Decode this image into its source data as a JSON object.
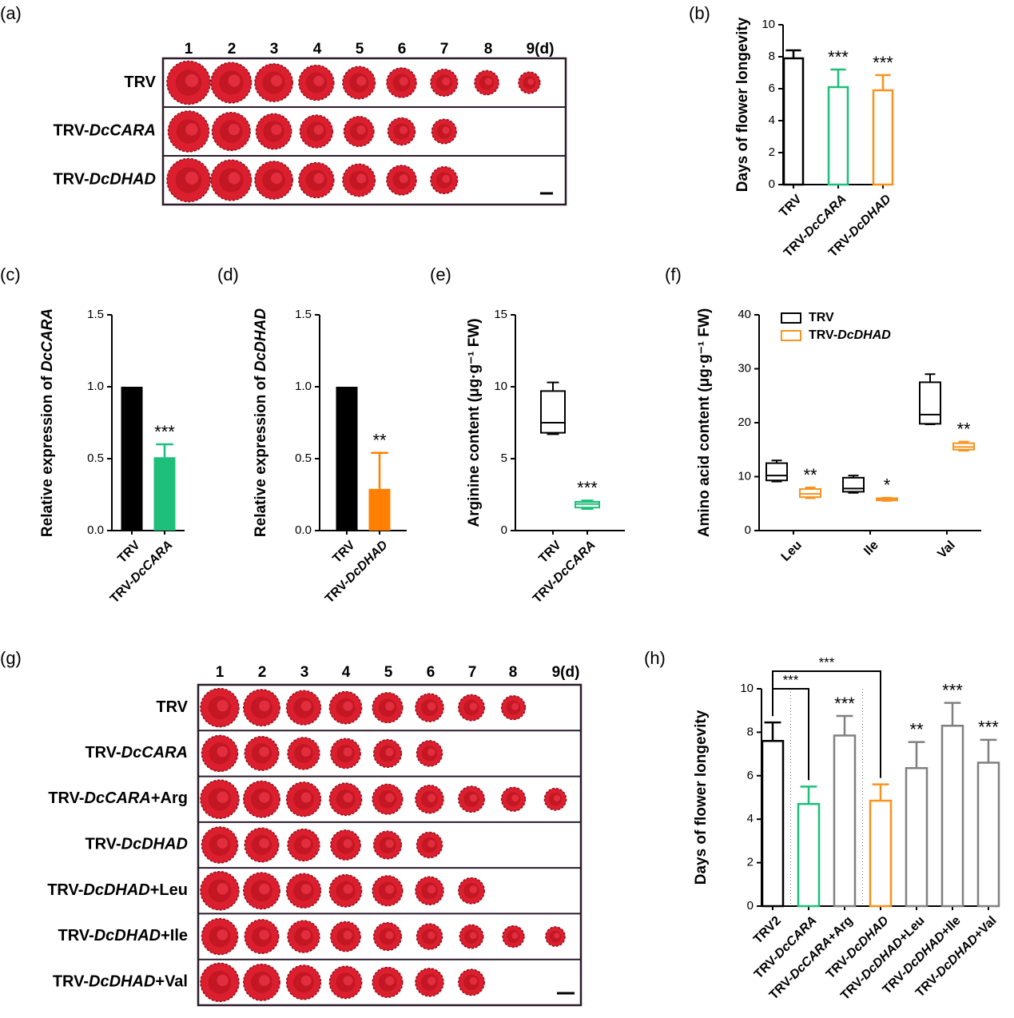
{
  "chart_data": [
    {
      "type": "bar",
      "panel_label": "(b)",
      "ylabel": "Days of flower longevity",
      "categories": [
        "TRV",
        "TRV-DcCARA",
        "TRV-DcDHAD"
      ],
      "values": [
        7.9,
        6.1,
        5.9
      ],
      "errors": [
        0.5,
        1.1,
        0.95
      ],
      "colors": [
        "#000000",
        "#1dbf7a",
        "#f7931e"
      ],
      "filled": false,
      "significance": [
        null,
        "***",
        "***"
      ],
      "ylim": [
        0,
        10
      ],
      "yticks": [
        0,
        2,
        4,
        6,
        8,
        10
      ]
    },
    {
      "type": "bar",
      "panel_label": "(c)",
      "ylabel": "Relative expression of DcCARA",
      "categories": [
        "TRV",
        "TRV-DcCARA"
      ],
      "values": [
        1.0,
        0.51
      ],
      "errors": [
        null,
        0.09
      ],
      "colors": [
        "#000000",
        "#1dbf7a"
      ],
      "filled": true,
      "significance": [
        null,
        "***"
      ],
      "ylim": [
        0,
        1.5
      ],
      "yticks": [
        {
          "value": 0,
          "label": "0.0"
        },
        0.5,
        {
          "value": 1,
          "label": "1.0"
        },
        1.5
      ]
    },
    {
      "type": "bar",
      "panel_label": "(d)",
      "ylabel": "Relative expression of DcDHAD",
      "categories": [
        "TRV",
        "TRV-DcDHAD"
      ],
      "values": [
        1.0,
        0.29
      ],
      "errors": [
        null,
        0.25
      ],
      "colors": [
        "#000000",
        "#ff8000"
      ],
      "filled": true,
      "significance": [
        null,
        "**"
      ],
      "ylim": [
        0,
        1.5
      ],
      "yticks": [
        {
          "value": 0,
          "label": "0.0"
        },
        0.5,
        {
          "value": 1,
          "label": "1.0"
        },
        1.5
      ]
    },
    {
      "type": "box",
      "panel_label": "(e)",
      "ylabel": "Arginine content (μg·g⁻¹ FW)",
      "categories": [
        "TRV",
        "TRV-DcCARA"
      ],
      "series": [
        {
          "colors": [
            "#000000",
            "#1dbf7a"
          ],
          "min": [
            6.7,
            1.5
          ],
          "q1": [
            6.8,
            1.6
          ],
          "median": [
            7.5,
            1.85
          ],
          "q3": [
            9.7,
            2.0
          ],
          "max": [
            10.3,
            2.1
          ]
        }
      ],
      "significance": [
        null,
        "***"
      ],
      "ylim": [
        0,
        15
      ],
      "yticks": [
        0,
        5,
        10,
        15
      ]
    },
    {
      "type": "box",
      "panel_label": "(f)",
      "ylabel": "Amino acid content (μg·g⁻¹ FW)",
      "categories": [
        "Leu",
        "Ile",
        "Val"
      ],
      "series": [
        {
          "name": "TRV",
          "color": "#000000",
          "min": [
            9.1,
            7.0,
            19.7
          ],
          "q1": [
            9.3,
            7.2,
            19.8
          ],
          "median": [
            10.2,
            7.8,
            21.5
          ],
          "q3": [
            12.5,
            9.8,
            27.5
          ],
          "max": [
            13.0,
            10.2,
            29.0
          ]
        },
        {
          "name": "TRV-DcDHAD",
          "color": "#f7931e",
          "min": [
            6.0,
            5.5,
            14.8
          ],
          "q1": [
            6.2,
            5.6,
            15.0
          ],
          "median": [
            6.8,
            5.8,
            15.5
          ],
          "q3": [
            7.7,
            6.0,
            16.2
          ],
          "max": [
            8.0,
            6.1,
            16.5
          ]
        }
      ],
      "significance": [
        "**",
        "*",
        "**"
      ],
      "legend": "top-left",
      "ylim": [
        0,
        40
      ],
      "yticks": [
        0,
        10,
        20,
        30,
        40
      ]
    },
    {
      "type": "bar",
      "panel_label": "(h)",
      "ylabel": "Days of flower longevity",
      "categories": [
        "TRV2",
        "TRV-DcCARA",
        "TRV-DcCARA+Arg",
        "TRV-DcDHAD",
        "TRV-DcDHAD+Leu",
        "TRV-DcDHAD+Ile",
        "TRV-DcDHAD+Val"
      ],
      "values": [
        7.6,
        4.7,
        7.85,
        4.85,
        6.35,
        8.3,
        6.6
      ],
      "errors": [
        0.85,
        0.8,
        0.9,
        0.75,
        1.2,
        1.05,
        1.05
      ],
      "colors": [
        "#000000",
        "#1dbf7a",
        "#808080",
        "#f7931e",
        "#808080",
        "#808080",
        "#808080"
      ],
      "filled": false,
      "significance": [
        null,
        null,
        "***",
        null,
        "**",
        "***",
        "***"
      ],
      "significance_colors": [
        null,
        null,
        "#1dbf7a",
        null,
        "#f7931e",
        "#f7931e",
        "#f7931e"
      ],
      "brackets": [
        {
          "from": "TRV2",
          "to": "TRV-DcCARA",
          "text": "***"
        },
        {
          "from": "TRV2",
          "to": "TRV-DcDHAD",
          "text": "***"
        }
      ],
      "ylim": [
        0,
        10
      ],
      "yticks": [
        0,
        2,
        4,
        6,
        8,
        10
      ]
    }
  ],
  "photo_panels": [
    {
      "panel_label": "(a)",
      "columns": [
        "1",
        "2",
        "3",
        "4",
        "5",
        "6",
        "7",
        "8",
        "9(d)"
      ],
      "rows": [
        "TRV",
        "TRV-DcCARA",
        "TRV-DcDHAD"
      ]
    },
    {
      "panel_label": "(g)",
      "columns": [
        "1",
        "2",
        "3",
        "4",
        "5",
        "6",
        "7",
        "8",
        "9(d)"
      ],
      "rows": [
        "TRV",
        "TRV-DcCARA",
        "TRV-DcCARA+Arg",
        "TRV-DcDHAD",
        "TRV-DcDHAD+Leu",
        "TRV-DcDHAD+Ile",
        "TRV-DcDHAD+Val"
      ]
    }
  ]
}
